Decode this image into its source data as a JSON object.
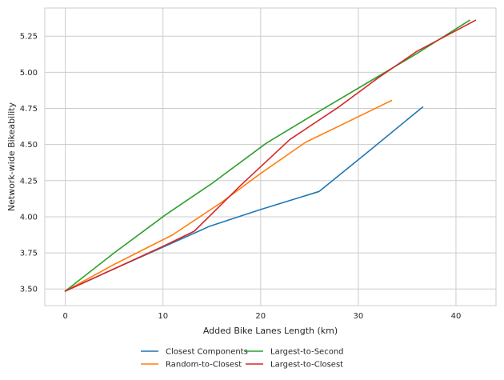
{
  "chart_data": {
    "type": "line",
    "title": "",
    "xlabel": "Added Bike Lanes Length (km)",
    "ylabel": "Network-wide Bikeability",
    "xlim": [
      -2.1,
      44.1
    ],
    "ylim": [
      3.385,
      5.445
    ],
    "xticks": [
      0,
      10,
      20,
      30,
      40
    ],
    "yticks": [
      3.5,
      3.75,
      4.0,
      4.25,
      4.5,
      4.75,
      5.0,
      5.25
    ],
    "ytick_labels": [
      "3.50",
      "3.75",
      "4.00",
      "4.25",
      "4.50",
      "4.75",
      "5.00",
      "5.25"
    ],
    "grid": true,
    "legend_placement": "bottom-center",
    "series": [
      {
        "name": "Closest Components",
        "color": "#1f77b4",
        "x": [
          0,
          5,
          10,
          14.8,
          20,
          26,
          31,
          36.6
        ],
        "y": [
          3.485,
          3.64,
          3.79,
          3.935,
          4.05,
          4.175,
          4.45,
          4.76
        ]
      },
      {
        "name": "Random-to-Closest",
        "color": "#ff7f0e",
        "x": [
          0,
          5,
          11,
          16,
          20,
          24.6,
          29,
          33.4
        ],
        "y": [
          3.485,
          3.67,
          3.875,
          4.1,
          4.3,
          4.515,
          4.66,
          4.805
        ]
      },
      {
        "name": "Largest-to-Second",
        "color": "#2ca02c",
        "x": [
          0,
          5,
          10.3,
          15,
          20.6,
          26,
          31,
          36,
          41.4
        ],
        "y": [
          3.485,
          3.75,
          4.015,
          4.23,
          4.51,
          4.73,
          4.93,
          5.13,
          5.36
        ]
      },
      {
        "name": "Largest-to-Closest",
        "color": "#d62728",
        "x": [
          0,
          5,
          10,
          13.2,
          18,
          23,
          28,
          32,
          36,
          42
        ],
        "y": [
          3.485,
          3.64,
          3.795,
          3.9,
          4.22,
          4.535,
          4.76,
          4.96,
          5.145,
          5.36
        ]
      }
    ]
  }
}
